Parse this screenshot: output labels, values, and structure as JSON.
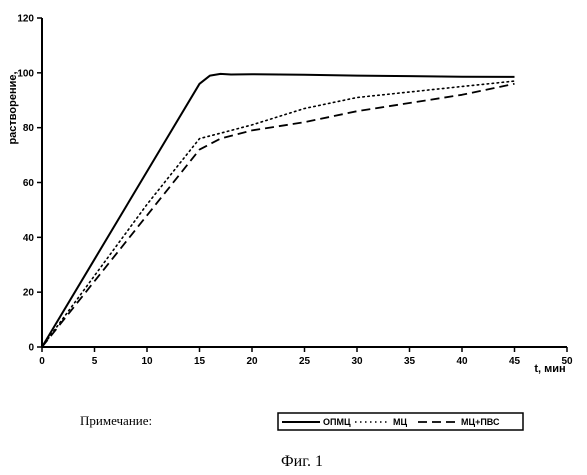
{
  "note_label": "Примечание:",
  "caption": "Фиг. 1",
  "chart_data": {
    "type": "line",
    "title": "",
    "xlabel": "t, мин",
    "ylabel": "растворение,",
    "xlim": [
      0,
      50
    ],
    "ylim": [
      0,
      120
    ],
    "x_ticks": [
      0,
      5,
      10,
      15,
      20,
      25,
      30,
      35,
      40,
      45,
      50
    ],
    "y_ticks": [
      0,
      20,
      40,
      60,
      80,
      100,
      120
    ],
    "grid": false,
    "legend_position": "bottom-right",
    "series": [
      {
        "name": "ОПМЦ",
        "style": "solid",
        "color": "#000000",
        "points": [
          [
            0,
            0
          ],
          [
            5,
            32
          ],
          [
            10,
            64
          ],
          [
            15,
            96
          ],
          [
            16,
            99
          ],
          [
            17,
            99.6
          ],
          [
            18,
            99.4
          ],
          [
            20,
            99.5
          ],
          [
            25,
            99.3
          ],
          [
            30,
            99
          ],
          [
            35,
            98.8
          ],
          [
            40,
            98.6
          ],
          [
            45,
            98.5
          ]
        ]
      },
      {
        "name": "МЦ",
        "style": "dotted",
        "color": "#000000",
        "points": [
          [
            0,
            0
          ],
          [
            5,
            26
          ],
          [
            10,
            52
          ],
          [
            15,
            76
          ],
          [
            17,
            78
          ],
          [
            20,
            81
          ],
          [
            25,
            87
          ],
          [
            30,
            91
          ],
          [
            35,
            93
          ],
          [
            40,
            95
          ],
          [
            45,
            97
          ]
        ]
      },
      {
        "name": "МЦ+ПВС",
        "style": "dashed",
        "color": "#000000",
        "points": [
          [
            0,
            0
          ],
          [
            5,
            24
          ],
          [
            10,
            48
          ],
          [
            15,
            72
          ],
          [
            17,
            76
          ],
          [
            20,
            79
          ],
          [
            25,
            82
          ],
          [
            30,
            86
          ],
          [
            35,
            89
          ],
          [
            40,
            92
          ],
          [
            45,
            96
          ]
        ]
      }
    ]
  }
}
